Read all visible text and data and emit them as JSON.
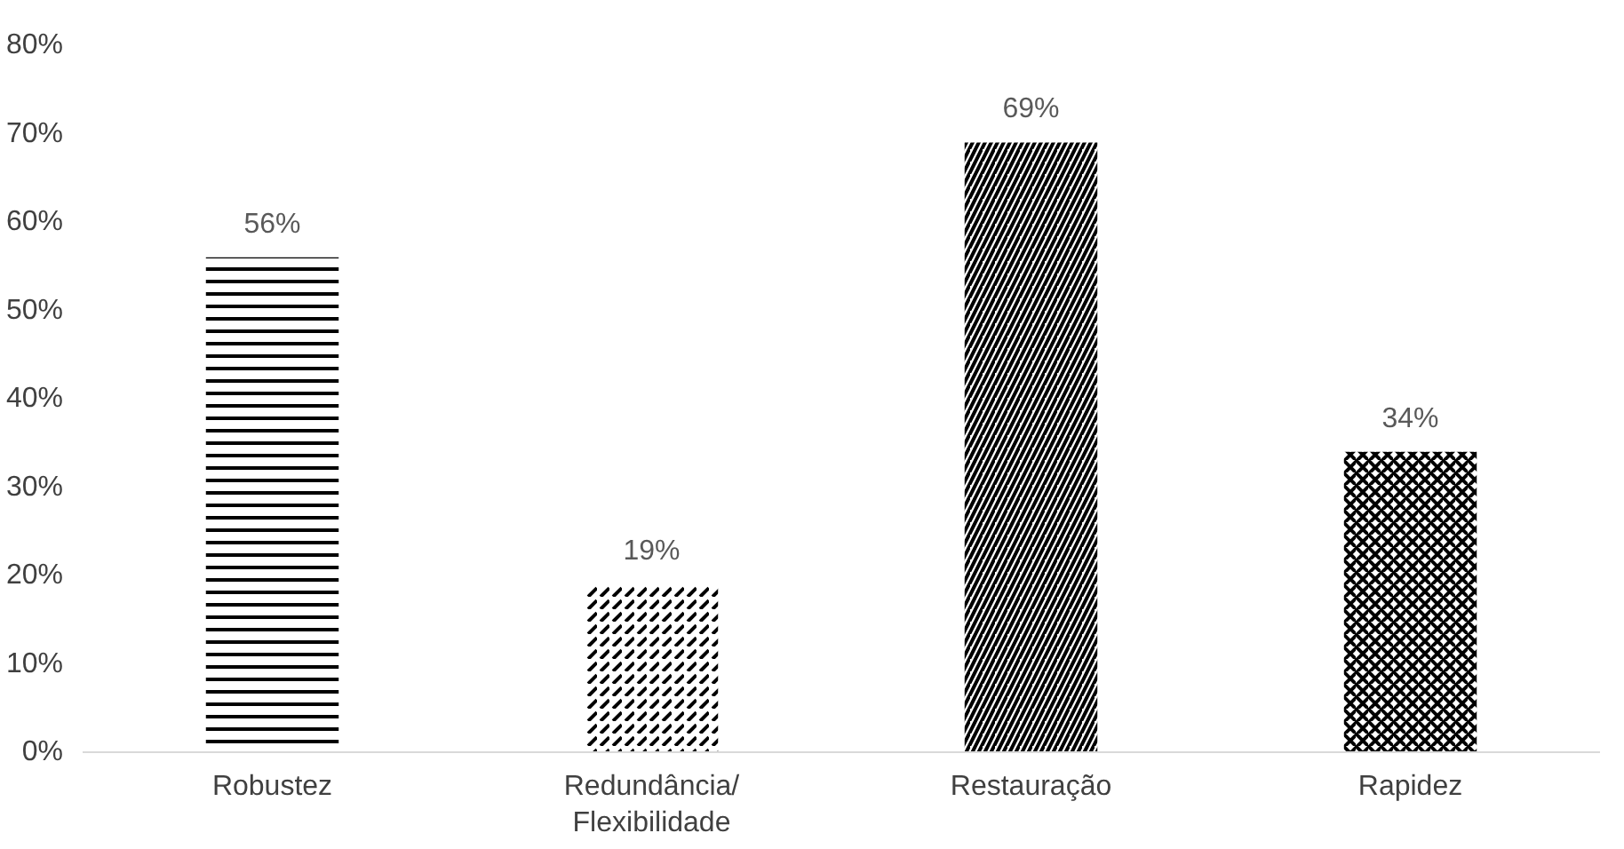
{
  "chart_data": {
    "type": "bar",
    "categories": [
      "Robustez",
      "Redundância/\nFlexibilidade",
      "Restauração",
      "Rapidez"
    ],
    "values": [
      56,
      19,
      69,
      34
    ],
    "value_labels": [
      "56%",
      "19%",
      "69%",
      "34%"
    ],
    "color": "#000000",
    "ylim": [
      0,
      80
    ],
    "yticks": [
      {
        "value": 0,
        "label": "0%"
      },
      {
        "value": 10,
        "label": "10%"
      },
      {
        "value": 20,
        "label": "20%"
      },
      {
        "value": 30,
        "label": "30%"
      },
      {
        "value": 40,
        "label": "40%"
      },
      {
        "value": 50,
        "label": "50%"
      },
      {
        "value": 60,
        "label": "60%"
      },
      {
        "value": 70,
        "label": "70%"
      },
      {
        "value": 80,
        "label": "80%"
      }
    ],
    "grid": false
  }
}
